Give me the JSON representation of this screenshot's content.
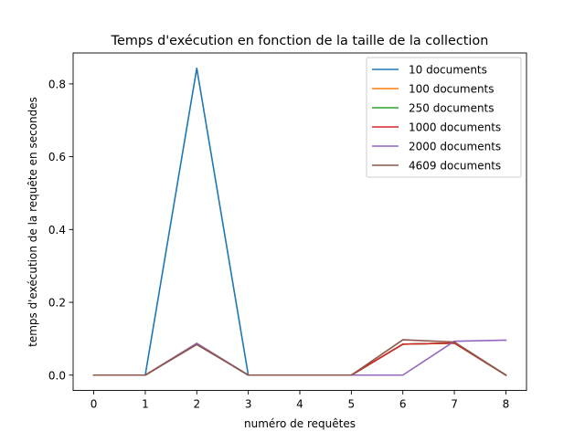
{
  "chart_data": {
    "type": "line",
    "title": "Temps d'exécution en fonction de la taille de la collection",
    "xlabel": "numéro de requêtes",
    "ylabel": "temps d'exécution de la requête en secondes",
    "x": [
      0,
      1,
      2,
      3,
      4,
      5,
      6,
      7,
      8
    ],
    "xticks": [
      "0",
      "1",
      "2",
      "3",
      "4",
      "5",
      "6",
      "7",
      "8"
    ],
    "yticks": [
      "0.0",
      "0.2",
      "0.4",
      "0.6",
      "0.8"
    ],
    "xlim": [
      -0.4,
      8.4
    ],
    "ylim": [
      -0.042,
      0.885
    ],
    "grid": false,
    "legend_position": "top-right",
    "series": [
      {
        "name": "10 documents",
        "color": "#1f77b4",
        "values": [
          0.0,
          0.0,
          0.843,
          0.0,
          0.0,
          0.0,
          0.085,
          0.088,
          0.0
        ]
      },
      {
        "name": "100 documents",
        "color": "#ff7f0e",
        "values": [
          0.0,
          0.0,
          0.087,
          0.0,
          0.0,
          0.0,
          0.085,
          0.088,
          0.0
        ]
      },
      {
        "name": "250 documents",
        "color": "#2ca02c",
        "values": [
          0.0,
          0.0,
          0.087,
          0.0,
          0.0,
          0.0,
          0.085,
          0.088,
          0.0
        ]
      },
      {
        "name": "1000 documents",
        "color": "#d62728",
        "values": [
          0.0,
          0.0,
          0.087,
          0.0,
          0.0,
          0.0,
          0.085,
          0.088,
          0.0
        ]
      },
      {
        "name": "2000 documents",
        "color": "#9467bd",
        "values": [
          0.0,
          0.0,
          0.087,
          0.0,
          0.0,
          0.0,
          0.0,
          0.093,
          0.096
        ]
      },
      {
        "name": "4609 documents",
        "color": "#8c564b",
        "values": [
          0.0,
          0.0,
          0.084,
          0.0,
          0.0,
          0.0,
          0.097,
          0.091,
          0.0
        ]
      }
    ]
  }
}
